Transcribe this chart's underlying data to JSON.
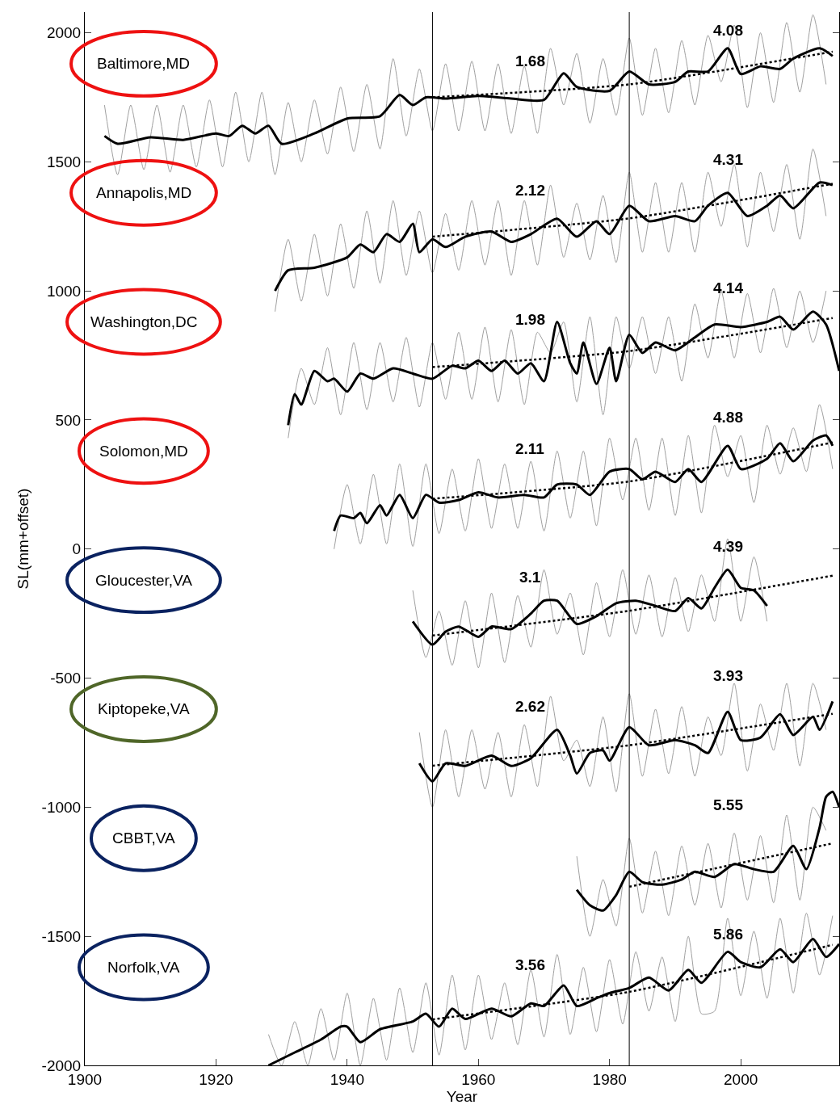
{
  "chart_data": {
    "type": "line",
    "xlabel": "Year",
    "ylabel": "SL(mm+offset)",
    "xlim": [
      1900,
      2015
    ],
    "xticks": [
      1900,
      1920,
      1940,
      1960,
      1980,
      2000
    ],
    "ylim": [
      -2000,
      2080
    ],
    "yticks": [
      -2000,
      -1500,
      -1000,
      -500,
      0,
      500,
      1000,
      1500,
      2000
    ],
    "grid": false,
    "ref_lines": [
      {
        "axis": "x",
        "value": 1953,
        "color": "#000000"
      },
      {
        "axis": "x",
        "value": 1983,
        "color": "#000000"
      }
    ],
    "annotations": [
      "Baltimore,MD",
      "Annapolis,MD",
      "Washington,DC",
      "Solomon,MD",
      "Gloucester,VA",
      "Kiptopeke,VA",
      "CBBT,VA",
      "Norfolk,VA",
      "1.68",
      "4.08",
      "2.12",
      "4.31",
      "1.98",
      "4.14",
      "2.11",
      "4.88",
      "3.1",
      "4.39",
      "2.62",
      "3.93",
      "5.55",
      "3.56",
      "5.86"
    ],
    "series": [
      {
        "color": "#a0a0a0",
        "x": [
          1903,
          1905,
          1907,
          1909,
          1911,
          1913,
          1915,
          1917,
          1919,
          1921,
          1923,
          1925,
          1927,
          1929,
          1931,
          1933,
          1935,
          1937,
          1939,
          1941,
          1943,
          1945,
          1947,
          1949,
          1951,
          1953,
          1955,
          1957,
          1959,
          1961,
          1963,
          1965,
          1967,
          1969,
          1971,
          1973,
          1975,
          1977,
          1979,
          1981,
          1983,
          1985,
          1987,
          1989,
          1991,
          1993,
          1995,
          1997,
          1999,
          2001,
          2003,
          2005,
          2007,
          2009,
          2011,
          2013
        ],
        "values": [
          1720,
          1450,
          1720,
          1470,
          1720,
          1460,
          1720,
          1480,
          1740,
          1480,
          1770,
          1500,
          1770,
          1450,
          1730,
          1500,
          1740,
          1530,
          1790,
          1540,
          1800,
          1550,
          1900,
          1600,
          1860,
          1620,
          1880,
          1620,
          1890,
          1620,
          1880,
          1610,
          1870,
          1610,
          1940,
          1720,
          1920,
          1650,
          1900,
          1680,
          1980,
          1680,
          1940,
          1690,
          1970,
          1720,
          1990,
          1810,
          2030,
          1710,
          2000,
          1730,
          2040,
          1770,
          2070,
          1800
        ]
      },
      {
        "color": "#a0a0a0",
        "x": [
          1929,
          1931,
          1933,
          1935,
          1937,
          1939,
          1941,
          1943,
          1945,
          1947,
          1949,
          1951,
          1953,
          1955,
          1957,
          1959,
          1961,
          1963,
          1965,
          1967,
          1969,
          1971,
          1973,
          1975,
          1977,
          1979,
          1981,
          1983,
          1985,
          1987,
          1989,
          1991,
          1993,
          1995,
          1997,
          1999,
          2001,
          2003,
          2005,
          2007,
          2009,
          2011,
          2013
        ],
        "values": [
          920,
          1200,
          960,
          1220,
          980,
          1260,
          1010,
          1310,
          1030,
          1350,
          1060,
          1310,
          1070,
          1300,
          1080,
          1350,
          1100,
          1350,
          1060,
          1350,
          1100,
          1410,
          1130,
          1340,
          1120,
          1370,
          1110,
          1460,
          1150,
          1420,
          1150,
          1420,
          1150,
          1460,
          1250,
          1490,
          1170,
          1460,
          1230,
          1490,
          1200,
          1550,
          1290
        ]
      },
      {
        "color": "#a0a0a0",
        "x": [
          1931,
          1933,
          1935,
          1937,
          1939,
          1941,
          1943,
          1945,
          1947,
          1949,
          1951,
          1953,
          1955,
          1957,
          1959,
          1961,
          1963,
          1965,
          1967,
          1969,
          1971,
          1973,
          1975,
          1977,
          1979,
          1981,
          1983,
          1985,
          1987,
          1989,
          1991,
          1993,
          1995,
          1997,
          1999,
          2001,
          2003,
          2005,
          2007,
          2009,
          2011,
          2013
        ],
        "values": [
          430,
          700,
          560,
          780,
          520,
          800,
          540,
          800,
          570,
          820,
          550,
          800,
          580,
          840,
          580,
          860,
          570,
          850,
          560,
          840,
          760,
          880,
          570,
          900,
          520,
          900,
          700,
          900,
          680,
          900,
          650,
          950,
          740,
          1000,
          740,
          990,
          760,
          1010,
          780,
          1000,
          800,
          1000
        ]
      },
      {
        "color": "#a0a0a0",
        "x": [
          1938,
          1940,
          1942,
          1944,
          1946,
          1948,
          1950,
          1952,
          1954,
          1956,
          1958,
          1960,
          1962,
          1964,
          1966,
          1968,
          1970,
          1972,
          1974,
          1976,
          1978,
          1980,
          1982,
          1984,
          1986,
          1988,
          1990,
          1992,
          1994,
          1996,
          1998,
          2000,
          2002,
          2004,
          2006,
          2008,
          2010,
          2012,
          2014
        ],
        "values": [
          0,
          250,
          20,
          290,
          20,
          330,
          10,
          330,
          60,
          310,
          70,
          350,
          80,
          330,
          80,
          340,
          70,
          380,
          120,
          380,
          90,
          430,
          190,
          430,
          150,
          430,
          130,
          440,
          140,
          480,
          280,
          440,
          180,
          480,
          290,
          470,
          300,
          560,
          310
        ]
      },
      {
        "color": "#a0a0a0",
        "x": [
          1950,
          1952,
          1954,
          1956,
          1958,
          1960,
          1962,
          1964,
          1966,
          1968,
          1970,
          1972,
          1974,
          1976,
          1978,
          1980,
          1982,
          1984,
          1986,
          1988,
          1990,
          1992,
          1994,
          1996,
          1998,
          2000,
          2002,
          2004
        ],
        "values": [
          -160,
          -420,
          -240,
          -450,
          -200,
          -460,
          -170,
          -440,
          -180,
          -380,
          -80,
          -330,
          -170,
          -410,
          -130,
          -340,
          -80,
          -330,
          -100,
          -340,
          -110,
          -320,
          -100,
          -280,
          40,
          -280,
          -30,
          -280
        ]
      },
      {
        "color": "#a0a0a0",
        "x": [
          1951,
          1953,
          1955,
          1957,
          1959,
          1961,
          1963,
          1965,
          1967,
          1969,
          1971,
          1973,
          1975,
          1977,
          1979,
          1981,
          1983,
          1985,
          1987,
          1989,
          1991,
          1993,
          1995,
          1997,
          1999,
          2001,
          2003,
          2005,
          2007,
          2009,
          2011,
          2013
        ],
        "values": [
          -710,
          -1000,
          -700,
          -960,
          -700,
          -930,
          -710,
          -960,
          -680,
          -920,
          -570,
          -820,
          -740,
          -920,
          -650,
          -940,
          -560,
          -880,
          -620,
          -870,
          -610,
          -880,
          -650,
          -800,
          -520,
          -860,
          -600,
          -780,
          -520,
          -840,
          -520,
          -700
        ]
      },
      {
        "color": "#a0a0a0",
        "x": [
          1975,
          1977,
          1979,
          1981,
          1983,
          1985,
          1987,
          1989,
          1991,
          1993,
          1995,
          1997,
          1999,
          2001,
          2003,
          2005,
          2007,
          2009,
          2011,
          2013
        ],
        "values": [
          -1190,
          -1500,
          -1280,
          -1460,
          -1120,
          -1410,
          -1170,
          -1420,
          -1150,
          -1380,
          -1140,
          -1390,
          -1100,
          -1360,
          -1110,
          -1370,
          -1030,
          -1360,
          -1000,
          -1090
        ]
      },
      {
        "color": "#a0a0a0",
        "x": [
          1928,
          1930,
          1932,
          1934,
          1936,
          1938,
          1940,
          1942,
          1944,
          1946,
          1948,
          1950,
          1952,
          1954,
          1956,
          1958,
          1960,
          1962,
          1964,
          1966,
          1968,
          1970,
          1972,
          1974,
          1976,
          1978,
          1980,
          1982,
          1984,
          1986,
          1988,
          1990,
          1992,
          1994,
          1996,
          1998,
          2000,
          2002,
          2004,
          2006,
          2008,
          2010,
          2012,
          2014
        ],
        "values": [
          -1880,
          -2000,
          -1830,
          -2000,
          -1780,
          -1980,
          -1720,
          -2000,
          -1740,
          -1980,
          -1700,
          -1950,
          -1680,
          -1960,
          -1650,
          -1940,
          -1650,
          -1900,
          -1680,
          -1920,
          -1630,
          -1890,
          -1570,
          -1880,
          -1620,
          -1870,
          -1590,
          -1840,
          -1560,
          -1790,
          -1580,
          -1830,
          -1500,
          -1800,
          -1790,
          -1430,
          -1730,
          -1480,
          -1740,
          -1430,
          -1720,
          -1410,
          -1650,
          -1420
        ]
      },
      {
        "color": "#000000",
        "x": [
          1903,
          1905,
          1910,
          1915,
          1920,
          1922,
          1924,
          1926,
          1928,
          1930,
          1935,
          1940,
          1945,
          1948,
          1950,
          1952,
          1955,
          1960,
          1965,
          1970,
          1973,
          1975,
          1980,
          1983,
          1986,
          1990,
          1992,
          1995,
          1998,
          2000,
          2003,
          2006,
          2008,
          2012,
          2014
        ],
        "values": [
          1600,
          1570,
          1595,
          1585,
          1610,
          1600,
          1640,
          1610,
          1640,
          1570,
          1610,
          1668,
          1677,
          1759,
          1720,
          1750,
          1745,
          1755,
          1745,
          1740,
          1843,
          1790,
          1775,
          1850,
          1800,
          1810,
          1850,
          1850,
          1940,
          1840,
          1870,
          1860,
          1900,
          1940,
          1910
        ]
      },
      {
        "color": "#000000",
        "x": [
          1929,
          1931,
          1935,
          1940,
          1942,
          1944,
          1946,
          1948,
          1950,
          1951,
          1953,
          1955,
          1958,
          1962,
          1965,
          1968,
          1972,
          1975,
          1978,
          1980,
          1983,
          1986,
          1990,
          1993,
          1995,
          1998,
          2001,
          2004,
          2006,
          2008,
          2012,
          2014
        ],
        "values": [
          1000,
          1080,
          1090,
          1130,
          1180,
          1150,
          1220,
          1190,
          1260,
          1150,
          1200,
          1170,
          1210,
          1230,
          1190,
          1220,
          1280,
          1210,
          1270,
          1220,
          1330,
          1270,
          1290,
          1270,
          1330,
          1380,
          1290,
          1330,
          1370,
          1320,
          1420,
          1410
        ]
      },
      {
        "color": "#000000",
        "x": [
          1931,
          1932,
          1933,
          1935,
          1937,
          1938,
          1940,
          1942,
          1944,
          1947,
          1950,
          1953,
          1956,
          1958,
          1960,
          1962,
          1964,
          1966,
          1968,
          1970,
          1972,
          1974,
          1975,
          1976,
          1978,
          1980,
          1981,
          1983,
          1985,
          1987,
          1990,
          1993,
          1996,
          2000,
          2004,
          2006,
          2008,
          2011,
          2013,
          2015
        ],
        "values": [
          480,
          600,
          560,
          690,
          650,
          660,
          610,
          680,
          660,
          700,
          680,
          660,
          710,
          700,
          730,
          690,
          730,
          680,
          720,
          650,
          880,
          720,
          680,
          800,
          640,
          780,
          650,
          830,
          760,
          800,
          770,
          820,
          870,
          860,
          880,
          900,
          850,
          920,
          870,
          690
        ]
      },
      {
        "color": "#000000",
        "x": [
          1938,
          1939,
          1941,
          1942,
          1943,
          1945,
          1946,
          1948,
          1950,
          1952,
          1954,
          1957,
          1960,
          1963,
          1967,
          1970,
          1972,
          1975,
          1977,
          1980,
          1983,
          1985,
          1987,
          1990,
          1992,
          1994,
          1998,
          2000,
          2004,
          2006,
          2008,
          2011,
          2013,
          2014
        ],
        "values": [
          70,
          130,
          120,
          140,
          100,
          170,
          130,
          210,
          120,
          210,
          180,
          190,
          220,
          200,
          210,
          200,
          250,
          250,
          210,
          300,
          310,
          270,
          300,
          260,
          310,
          260,
          400,
          310,
          350,
          410,
          340,
          420,
          440,
          400
        ]
      },
      {
        "color": "#000000",
        "x": [
          1950,
          1953,
          1955,
          1957,
          1960,
          1962,
          1965,
          1968,
          1970,
          1972,
          1975,
          1978,
          1981,
          1984,
          1987,
          1990,
          1992,
          1994,
          1996,
          1998,
          2000,
          2002,
          2004
        ],
        "values": [
          -280,
          -370,
          -320,
          -300,
          -340,
          -300,
          -310,
          -250,
          -200,
          -200,
          -290,
          -260,
          -210,
          -200,
          -220,
          -240,
          -190,
          -230,
          -150,
          -80,
          -150,
          -160,
          -220
        ]
      },
      {
        "color": "#000000",
        "x": [
          1951,
          1953,
          1955,
          1958,
          1962,
          1965,
          1968,
          1972,
          1974,
          1975,
          1977,
          1979,
          1980,
          1983,
          1986,
          1990,
          1993,
          1995,
          1998,
          2000,
          2003,
          2006,
          2008,
          2011,
          2012,
          2014
        ],
        "values": [
          -830,
          -900,
          -830,
          -840,
          -800,
          -840,
          -810,
          -700,
          -800,
          -870,
          -790,
          -780,
          -820,
          -690,
          -760,
          -740,
          -760,
          -790,
          -630,
          -740,
          -730,
          -640,
          -720,
          -650,
          -700,
          -590
        ]
      },
      {
        "color": "#000000",
        "x": [
          1975,
          1977,
          1979,
          1981,
          1983,
          1985,
          1988,
          1991,
          1993,
          1996,
          1999,
          2002,
          2005,
          2008,
          2010,
          2012,
          2013,
          2014,
          2015
        ],
        "values": [
          -1320,
          -1380,
          -1400,
          -1340,
          -1250,
          -1290,
          -1300,
          -1280,
          -1250,
          -1270,
          -1220,
          -1240,
          -1250,
          -1150,
          -1240,
          -1080,
          -960,
          -940,
          -1000
        ]
      },
      {
        "color": "#000000",
        "x": [
          1928,
          1932,
          1936,
          1939,
          1940,
          1942,
          1945,
          1950,
          1952,
          1954,
          1956,
          1958,
          1962,
          1965,
          1968,
          1970,
          1973,
          1975,
          1978,
          1980,
          1983,
          1986,
          1989,
          1992,
          1994,
          1998,
          2000,
          2003,
          2006,
          2008,
          2011,
          2013,
          2015
        ],
        "values": [
          -2000,
          -1950,
          -1900,
          -1850,
          -1850,
          -1910,
          -1860,
          -1830,
          -1800,
          -1850,
          -1780,
          -1820,
          -1780,
          -1810,
          -1760,
          -1770,
          -1690,
          -1770,
          -1740,
          -1720,
          -1700,
          -1660,
          -1710,
          -1630,
          -1680,
          -1560,
          -1600,
          -1620,
          -1550,
          -1600,
          -1510,
          -1580,
          -1530
        ]
      },
      {
        "color": "#000000",
        "line_style": "dotted",
        "x": [
          1953,
          1983,
          2014
        ],
        "values": [
          1750,
          1800,
          1927
        ]
      },
      {
        "color": "#000000",
        "line_style": "dotted",
        "x": [
          1953,
          1983,
          2014
        ],
        "values": [
          1210,
          1281,
          1415
        ]
      },
      {
        "color": "#000000",
        "line_style": "dotted",
        "x": [
          1953,
          1983,
          2014
        ],
        "values": [
          705,
          767,
          895
        ]
      },
      {
        "color": "#000000",
        "line_style": "dotted",
        "x": [
          1953,
          1983,
          2014
        ],
        "values": [
          195,
          262,
          413
        ]
      },
      {
        "color": "#000000",
        "line_style": "dotted",
        "x": [
          1953,
          1983,
          2014
        ],
        "values": [
          -335,
          -239,
          -103
        ]
      },
      {
        "color": "#000000",
        "line_style": "dotted",
        "x": [
          1953,
          1983,
          2014
        ],
        "values": [
          -839,
          -760,
          -638
        ]
      },
      {
        "color": "#000000",
        "line_style": "dotted",
        "x": [
          1983,
          2014
        ],
        "values": [
          -1308,
          -1140
        ]
      },
      {
        "color": "#000000",
        "line_style": "dotted",
        "x": [
          1953,
          1983,
          2014
        ],
        "values": [
          -1822,
          -1715,
          -1533
        ]
      }
    ]
  }
}
